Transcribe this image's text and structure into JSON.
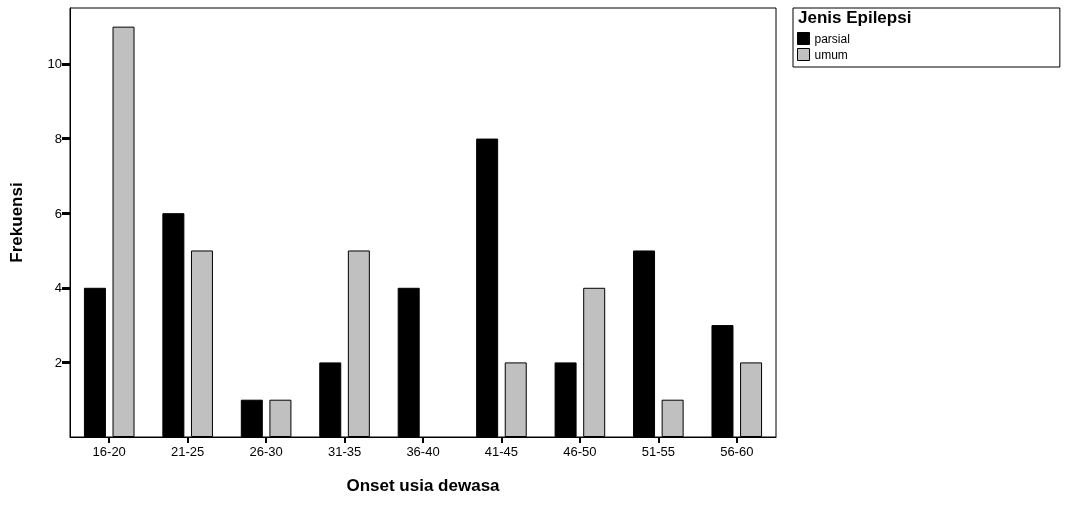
{
  "chart_data": {
    "type": "bar",
    "xlabel": "Onset usia dewasa",
    "ylabel": "Frekuensi",
    "legend_title": "Jenis Epilepsi",
    "categories": [
      "16-20",
      "21-25",
      "26-30",
      "31-35",
      "36-40",
      "41-45",
      "46-50",
      "51-55",
      "56-60"
    ],
    "series": [
      {
        "name": "parsial",
        "color": "#000000",
        "values": [
          4,
          6,
          1,
          2,
          4,
          8,
          2,
          5,
          3
        ]
      },
      {
        "name": "umum",
        "color": "#c0c0c0",
        "values": [
          11,
          5,
          1,
          5,
          null,
          2,
          4,
          1,
          2
        ]
      }
    ],
    "ylim": [
      0,
      11.5
    ],
    "yticks": [
      2,
      4,
      6,
      8,
      10
    ],
    "grid": false,
    "legend": "top right"
  }
}
